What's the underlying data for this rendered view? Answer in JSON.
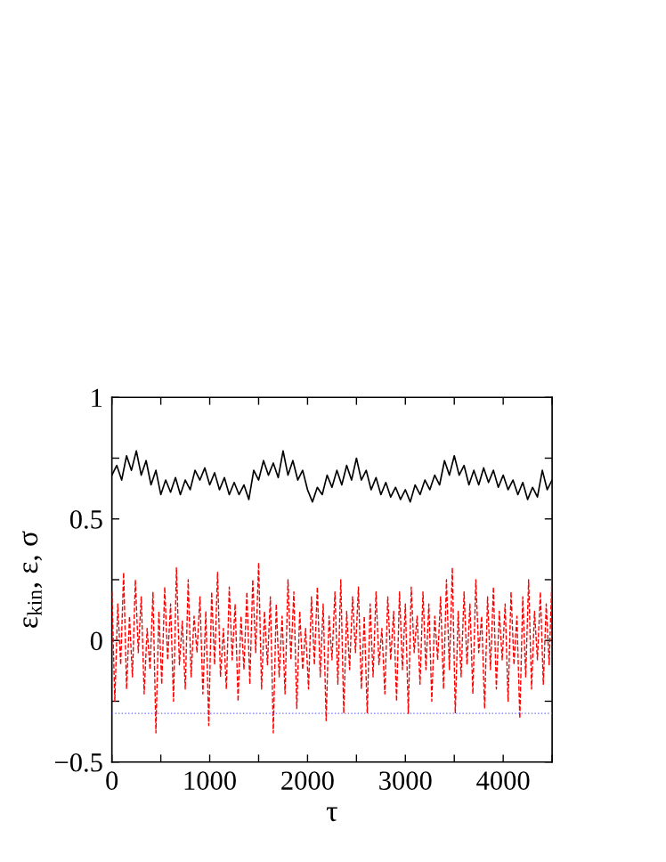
{
  "chart_data": {
    "type": "line",
    "xlabel": "τ",
    "ylabel": "ε$_{kin}$, ε, σ",
    "xlim": [
      0,
      4500
    ],
    "ylim": [
      -0.5,
      1
    ],
    "xticks": [
      0,
      {
        "value": 500,
        "label": null
      },
      1000,
      {
        "value": 1500,
        "label": null
      },
      2000,
      {
        "value": 2500,
        "label": null
      },
      3000,
      {
        "value": 3500,
        "label": null
      },
      4000,
      {
        "value": 4500,
        "label": null
      }
    ],
    "yticks": [
      -0.5,
      {
        "value": -0.25,
        "label": null
      },
      0,
      {
        "value": 0.25,
        "label": null
      },
      0.5,
      {
        "value": 0.75,
        "label": null
      },
      1
    ],
    "grid": false,
    "series": [
      {
        "color": "#000000",
        "line_style": "solid",
        "x": [
          0,
          50,
          100,
          150,
          200,
          250,
          300,
          350,
          400,
          450,
          500,
          550,
          600,
          650,
          700,
          750,
          800,
          850,
          900,
          950,
          1000,
          1050,
          1100,
          1150,
          1200,
          1250,
          1300,
          1350,
          1400,
          1450,
          1500,
          1550,
          1600,
          1650,
          1700,
          1750,
          1800,
          1850,
          1900,
          1950,
          2000,
          2050,
          2100,
          2150,
          2200,
          2250,
          2300,
          2350,
          2400,
          2450,
          2500,
          2550,
          2600,
          2650,
          2700,
          2750,
          2800,
          2850,
          2900,
          2950,
          3000,
          3050,
          3100,
          3150,
          3200,
          3250,
          3300,
          3350,
          3400,
          3450,
          3500,
          3550,
          3600,
          3650,
          3700,
          3750,
          3800,
          3850,
          3900,
          3950,
          4000,
          4050,
          4100,
          4150,
          4200,
          4250,
          4300,
          4350,
          4400,
          4450,
          4500
        ],
        "values": [
          0.68,
          0.72,
          0.66,
          0.76,
          0.7,
          0.78,
          0.68,
          0.74,
          0.64,
          0.7,
          0.6,
          0.66,
          0.61,
          0.67,
          0.6,
          0.66,
          0.62,
          0.7,
          0.66,
          0.71,
          0.64,
          0.69,
          0.62,
          0.67,
          0.6,
          0.65,
          0.6,
          0.64,
          0.58,
          0.7,
          0.66,
          0.74,
          0.68,
          0.73,
          0.67,
          0.78,
          0.68,
          0.74,
          0.66,
          0.7,
          0.62,
          0.57,
          0.63,
          0.6,
          0.68,
          0.63,
          0.7,
          0.64,
          0.72,
          0.66,
          0.75,
          0.66,
          0.7,
          0.62,
          0.67,
          0.6,
          0.65,
          0.59,
          0.63,
          0.58,
          0.62,
          0.57,
          0.64,
          0.6,
          0.66,
          0.62,
          0.68,
          0.64,
          0.74,
          0.68,
          0.76,
          0.68,
          0.72,
          0.64,
          0.7,
          0.64,
          0.71,
          0.65,
          0.7,
          0.63,
          0.68,
          0.62,
          0.66,
          0.6,
          0.65,
          0.58,
          0.63,
          0.59,
          0.7,
          0.62,
          0.66
        ]
      },
      {
        "color": "#ff0000",
        "line_style": "dashed",
        "x": [
          0,
          30,
          60,
          90,
          120,
          150,
          180,
          210,
          240,
          270,
          300,
          330,
          360,
          390,
          420,
          450,
          480,
          510,
          540,
          570,
          600,
          630,
          660,
          690,
          720,
          750,
          780,
          810,
          840,
          870,
          900,
          930,
          960,
          990,
          1020,
          1050,
          1080,
          1110,
          1140,
          1170,
          1200,
          1230,
          1260,
          1290,
          1320,
          1350,
          1380,
          1410,
          1440,
          1470,
          1500,
          1530,
          1560,
          1590,
          1620,
          1650,
          1680,
          1710,
          1740,
          1770,
          1800,
          1830,
          1860,
          1890,
          1920,
          1950,
          1980,
          2010,
          2040,
          2070,
          2100,
          2130,
          2160,
          2190,
          2220,
          2250,
          2280,
          2310,
          2340,
          2370,
          2400,
          2430,
          2460,
          2490,
          2520,
          2550,
          2580,
          2610,
          2640,
          2670,
          2700,
          2730,
          2760,
          2790,
          2820,
          2850,
          2880,
          2910,
          2940,
          2970,
          3000,
          3030,
          3060,
          3090,
          3120,
          3150,
          3180,
          3210,
          3240,
          3270,
          3300,
          3330,
          3360,
          3390,
          3420,
          3450,
          3480,
          3510,
          3540,
          3570,
          3600,
          3630,
          3660,
          3690,
          3720,
          3750,
          3780,
          3810,
          3840,
          3870,
          3900,
          3930,
          3960,
          3990,
          4020,
          4050,
          4080,
          4110,
          4140,
          4170,
          4200,
          4230,
          4260,
          4290,
          4320,
          4350,
          4380,
          4410,
          4440,
          4470,
          4500
        ],
        "values": [
          0.2,
          -0.25,
          0.15,
          -0.1,
          0.28,
          -0.2,
          0.1,
          -0.15,
          0.25,
          -0.05,
          0.18,
          -0.22,
          0.05,
          -0.12,
          0.2,
          -0.38,
          0.12,
          -0.18,
          0.22,
          -0.08,
          0.15,
          -0.25,
          0.3,
          -0.1,
          0.08,
          -0.2,
          0.25,
          -0.15,
          0.1,
          -0.05,
          0.18,
          -0.22,
          0.12,
          -0.35,
          0.2,
          -0.1,
          0.28,
          -0.15,
          0.05,
          -0.2,
          0.22,
          -0.08,
          0.15,
          -0.25,
          0.1,
          -0.12,
          0.2,
          -0.18,
          0.25,
          -0.05,
          0.32,
          -0.2,
          0.12,
          -0.1,
          0.18,
          -0.38,
          0.15,
          -0.15,
          0.1,
          -0.22,
          0.25,
          -0.08,
          0.2,
          -0.28,
          0.12,
          -0.12,
          0.05,
          -0.2,
          0.18,
          -0.1,
          0.22,
          -0.15,
          0.15,
          -0.33,
          0.1,
          -0.08,
          0.2,
          -0.18,
          0.25,
          -0.3,
          0.12,
          -0.12,
          0.18,
          -0.05,
          0.22,
          -0.2,
          0.1,
          -0.3,
          0.15,
          -0.15,
          0.2,
          -0.1,
          0.05,
          -0.22,
          0.18,
          -0.08,
          0.12,
          -0.25,
          0.2,
          -0.12,
          0.15,
          -0.3,
          0.22,
          -0.05,
          0.1,
          -0.18,
          0.2,
          -0.12,
          0.15,
          -0.25,
          0.1,
          -0.08,
          0.18,
          -0.2,
          0.25,
          -0.12,
          0.3,
          -0.3,
          0.12,
          -0.15,
          0.2,
          -0.1,
          0.15,
          -0.22,
          0.25,
          -0.05,
          0.1,
          -0.28,
          0.18,
          -0.12,
          0.22,
          -0.2,
          0.12,
          -0.08,
          0.15,
          -0.25,
          0.2,
          -0.1,
          0.1,
          -0.32,
          0.18,
          -0.15,
          0.25,
          -0.2,
          0.12,
          -0.08,
          0.2,
          -0.18,
          0.15,
          -0.1,
          0.28
        ]
      },
      {
        "color": "#6a6aff",
        "line_style": "dotted",
        "x": [
          0,
          4500
        ],
        "values": [
          -0.3,
          -0.3
        ]
      }
    ]
  }
}
